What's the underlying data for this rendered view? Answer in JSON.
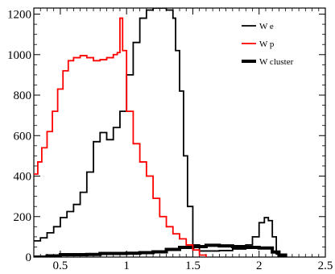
{
  "chart_data": {
    "type": "line",
    "title": "",
    "xlabel": "",
    "ylabel": "",
    "xlim": [
      0.3,
      2.5
    ],
    "ylim": [
      0,
      1230
    ],
    "x_ticks": [
      0.5,
      1,
      1.5,
      2,
      2.5
    ],
    "x_tick_labels": [
      "0.5",
      "1",
      "1.5",
      "2",
      "2.5"
    ],
    "y_ticks": [
      0,
      200,
      400,
      600,
      800,
      1000,
      1200
    ],
    "y_tick_labels": [
      "0",
      "200",
      "400",
      "600",
      "800",
      "1000",
      "1200"
    ],
    "grid": false,
    "legend_position": "top-right",
    "series": [
      {
        "name": "W e",
        "color": "#000000",
        "line_width": 1.8,
        "points": [
          [
            0.3,
            80
          ],
          [
            0.35,
            95
          ],
          [
            0.4,
            120
          ],
          [
            0.45,
            150
          ],
          [
            0.5,
            195
          ],
          [
            0.55,
            225
          ],
          [
            0.6,
            260
          ],
          [
            0.65,
            320
          ],
          [
            0.7,
            420
          ],
          [
            0.75,
            570
          ],
          [
            0.8,
            615
          ],
          [
            0.85,
            580
          ],
          [
            0.9,
            640
          ],
          [
            0.95,
            720
          ],
          [
            1.0,
            900
          ],
          [
            1.05,
            1060
          ],
          [
            1.1,
            1180
          ],
          [
            1.15,
            1220
          ],
          [
            1.2,
            1230
          ],
          [
            1.25,
            1230
          ],
          [
            1.3,
            1220
          ],
          [
            1.35,
            1180
          ],
          [
            1.37,
            1020
          ],
          [
            1.4,
            820
          ],
          [
            1.43,
            500
          ],
          [
            1.46,
            250
          ],
          [
            1.5,
            60
          ],
          [
            1.55,
            30
          ],
          [
            1.6,
            30
          ],
          [
            1.7,
            32
          ],
          [
            1.8,
            40
          ],
          [
            1.9,
            60
          ],
          [
            1.95,
            100
          ],
          [
            2.0,
            170
          ],
          [
            2.04,
            195
          ],
          [
            2.07,
            180
          ],
          [
            2.1,
            100
          ],
          [
            2.13,
            15
          ],
          [
            2.15,
            0
          ]
        ]
      },
      {
        "name": "W p",
        "color": "#ff0000",
        "line_width": 1.8,
        "points": [
          [
            0.3,
            410
          ],
          [
            0.33,
            470
          ],
          [
            0.36,
            540
          ],
          [
            0.4,
            620
          ],
          [
            0.44,
            720
          ],
          [
            0.48,
            830
          ],
          [
            0.52,
            920
          ],
          [
            0.56,
            970
          ],
          [
            0.6,
            985
          ],
          [
            0.65,
            995
          ],
          [
            0.7,
            985
          ],
          [
            0.75,
            970
          ],
          [
            0.8,
            975
          ],
          [
            0.85,
            985
          ],
          [
            0.9,
            1000
          ],
          [
            0.93,
            1010
          ],
          [
            0.95,
            1180
          ],
          [
            0.97,
            1020
          ],
          [
            1.0,
            720
          ],
          [
            1.05,
            560
          ],
          [
            1.1,
            470
          ],
          [
            1.15,
            400
          ],
          [
            1.2,
            290
          ],
          [
            1.25,
            200
          ],
          [
            1.3,
            150
          ],
          [
            1.35,
            115
          ],
          [
            1.4,
            90
          ],
          [
            1.45,
            60
          ],
          [
            1.5,
            35
          ],
          [
            1.55,
            10
          ],
          [
            1.6,
            0
          ]
        ]
      },
      {
        "name": "W cluster",
        "color": "#000000",
        "line_width": 4,
        "points": [
          [
            0.3,
            0
          ],
          [
            0.4,
            6
          ],
          [
            0.5,
            12
          ],
          [
            0.6,
            12
          ],
          [
            0.7,
            13
          ],
          [
            0.8,
            18
          ],
          [
            0.9,
            18
          ],
          [
            1.0,
            19
          ],
          [
            1.1,
            22
          ],
          [
            1.2,
            26
          ],
          [
            1.3,
            38
          ],
          [
            1.4,
            48
          ],
          [
            1.5,
            52
          ],
          [
            1.6,
            58
          ],
          [
            1.7,
            55
          ],
          [
            1.8,
            52
          ],
          [
            1.9,
            48
          ],
          [
            2.0,
            45
          ],
          [
            2.1,
            25
          ],
          [
            2.15,
            10
          ],
          [
            2.2,
            0
          ]
        ]
      }
    ]
  }
}
